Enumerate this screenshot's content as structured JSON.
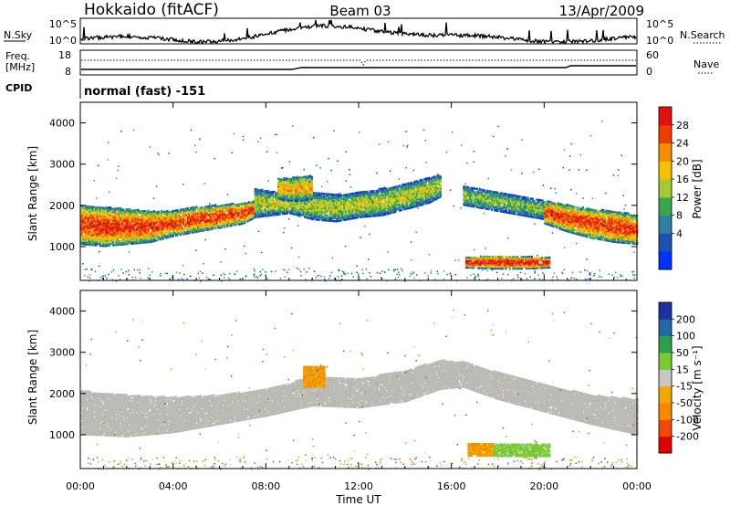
{
  "header": {
    "station": "Hokkaido (fitACF)",
    "beam": "Beam 03",
    "date": "13/Apr/2009"
  },
  "nsky_panel": {
    "left_label": "N.Sky",
    "right_label": "N.Search",
    "left_ticks": [
      "10^5",
      "10^0"
    ],
    "right_ticks": [
      "10^5",
      "10^0"
    ]
  },
  "freq_panel": {
    "left_label_1": "Freq.",
    "left_label_2": "[MHz]",
    "right_label": "Nave",
    "left_ticks": [
      "18",
      "8"
    ],
    "right_ticks": [
      "60",
      "0"
    ]
  },
  "cpid_panel": {
    "label": "CPID",
    "mode": "normal (fast) -151"
  },
  "power_panel": {
    "ylabel": "Slant Range [km]",
    "colorbar_label": "Power [dB]",
    "colorbar_ticks": [
      "28",
      "24",
      "20",
      "16",
      "12",
      "8",
      "4"
    ]
  },
  "velocity_panel": {
    "ylabel": "Slant Range [km]",
    "colorbar_label": "Velocity [m s⁻¹]",
    "colorbar_ticks": [
      "200",
      "100",
      "50",
      "15",
      "-15",
      "-50",
      "-100",
      "-200"
    ]
  },
  "xaxis": {
    "label": "Time UT",
    "ticks": [
      "00:00",
      "04:00",
      "08:00",
      "12:00",
      "16:00",
      "20:00",
      "00:00"
    ]
  },
  "yaxis": {
    "ticks": [
      "4000",
      "3000",
      "2000",
      "1000"
    ]
  },
  "colors": {
    "power_scale": [
      "#0033ff",
      "#1e4fb3",
      "#2f7fa0",
      "#3aa64b",
      "#a3c937",
      "#f2c200",
      "#f78d00",
      "#ee3d00",
      "#e01010"
    ],
    "velocity_scale": [
      "#e00000",
      "#f04a00",
      "#f38a00",
      "#f2a800",
      "#c8c8c0",
      "#78cc32",
      "#2f9e4a",
      "#1f6aa0",
      "#1e2f9e"
    ],
    "ground_scatter": "#bbbbb6"
  },
  "chart_data": [
    {
      "type": "heatmap",
      "title": "Power",
      "x_range_hours": [
        0,
        24
      ],
      "y_range_km": [
        180,
        4500
      ],
      "z_range_db": [
        0,
        30
      ],
      "features": [
        {
          "kind": "band",
          "t": [
            0.0,
            1.0,
            2.0,
            3.0,
            4.0,
            5.0,
            6.0,
            7.0,
            7.5
          ],
          "lower_km": [
            1050,
            1000,
            1050,
            1100,
            1250,
            1350,
            1450,
            1550,
            1700
          ],
          "upper_km": [
            2000,
            1950,
            1900,
            1850,
            1850,
            1950,
            2000,
            2050,
            2100
          ],
          "peak_db": 26
        },
        {
          "kind": "band",
          "t": [
            7.5,
            9.0,
            10.0,
            11.0,
            12.0,
            13.0,
            14.0,
            15.0,
            15.5
          ],
          "lower_km": [
            1700,
            1800,
            1650,
            1600,
            1700,
            1750,
            1900,
            2050,
            2200
          ],
          "upper_km": [
            2400,
            2250,
            2300,
            2250,
            2300,
            2400,
            2500,
            2650,
            2750
          ],
          "peak_db": 16
        },
        {
          "kind": "band",
          "t": [
            8.5,
            9.0,
            9.5,
            10.0
          ],
          "lower_km": [
            2150,
            2100,
            2100,
            2150
          ],
          "upper_km": [
            2650,
            2650,
            2700,
            2700
          ],
          "peak_db": 20
        },
        {
          "kind": "band",
          "t": [
            16.5,
            17.5,
            18.5,
            19.5,
            20.0
          ],
          "lower_km": [
            2000,
            1900,
            1800,
            1700,
            1650
          ],
          "upper_km": [
            2450,
            2350,
            2250,
            2150,
            2100
          ],
          "peak_db": 14
        },
        {
          "kind": "band",
          "t": [
            20.0,
            21.0,
            22.0,
            23.0,
            24.0
          ],
          "lower_km": [
            1550,
            1350,
            1200,
            1100,
            1050
          ],
          "upper_km": [
            2100,
            2000,
            1900,
            1850,
            1750
          ],
          "peak_db": 26
        },
        {
          "kind": "band",
          "t": [
            16.6,
            17.5,
            18.5,
            19.5,
            20.2
          ],
          "lower_km": [
            480,
            460,
            450,
            460,
            480
          ],
          "upper_km": [
            720,
            760,
            760,
            740,
            720
          ],
          "peak_db": 28
        }
      ]
    },
    {
      "type": "heatmap",
      "title": "Velocity",
      "x_range_hours": [
        0,
        24
      ],
      "y_range_km": [
        180,
        4500
      ],
      "z_range_ms": [
        -250,
        250
      ],
      "features": [
        {
          "kind": "ground_scatter_band",
          "t": [
            0.0,
            2.0,
            4.0,
            6.0,
            8.0,
            10.0,
            12.0,
            14.0,
            15.5,
            16.5,
            18.0,
            20.0,
            22.0,
            24.0
          ],
          "lower_km": [
            1000,
            950,
            1050,
            1250,
            1450,
            1700,
            1650,
            1800,
            2100,
            2150,
            1850,
            1550,
            1250,
            1000
          ],
          "upper_km": [
            2050,
            1950,
            1900,
            1950,
            2100,
            2400,
            2350,
            2550,
            2800,
            2750,
            2500,
            2200,
            1950,
            1850
          ]
        },
        {
          "kind": "velocity_patch",
          "t_start": 9.6,
          "t_end": 10.5,
          "lower_km": 2150,
          "upper_km": 2650,
          "velocity_ms": -50
        },
        {
          "kind": "velocity_patch",
          "t_start": 16.7,
          "t_end": 17.8,
          "lower_km": 480,
          "upper_km": 760,
          "velocity_ms": -50
        },
        {
          "kind": "velocity_patch",
          "t_start": 17.8,
          "t_end": 20.2,
          "lower_km": 470,
          "upper_km": 760,
          "velocity_ms": 30
        }
      ]
    }
  ]
}
